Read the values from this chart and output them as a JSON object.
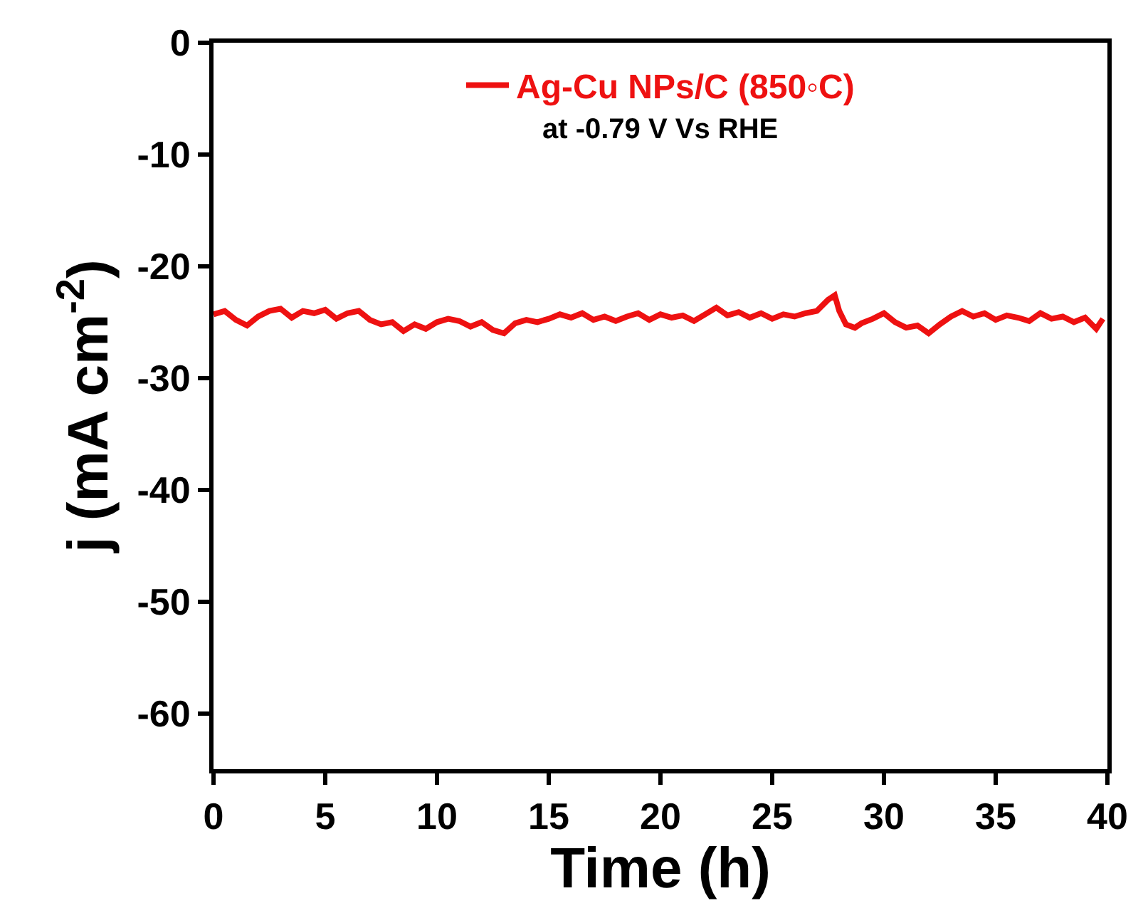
{
  "chart_data": {
    "type": "line",
    "xlabel": "Time (h)",
    "ylabel": "j (mA cm$^{-2}$)",
    "annotations": [
      "at -0.79 V Vs RHE"
    ],
    "xlim": [
      0,
      40
    ],
    "xticks": [
      0,
      5,
      10,
      15,
      20,
      25,
      30,
      35,
      40
    ],
    "ylim": [
      -65,
      0
    ],
    "yticks": [
      0,
      -10,
      -20,
      -30,
      -40,
      -50,
      -60
    ],
    "legend": "top",
    "marker": "none",
    "line_style": "solid",
    "x": [
      0,
      0.5,
      1,
      1.5,
      2,
      2.5,
      3,
      3.5,
      4,
      4.5,
      5,
      5.5,
      6,
      6.5,
      7,
      7.5,
      8,
      8.5,
      9,
      9.5,
      10,
      10.5,
      11,
      11.5,
      12,
      12.5,
      13,
      13.5,
      14,
      14.5,
      15,
      15.5,
      16,
      16.5,
      17,
      17.5,
      18,
      18.5,
      19,
      19.5,
      20,
      20.5,
      21,
      21.5,
      22,
      22.5,
      23,
      23.5,
      24,
      24.5,
      25,
      25.5,
      26,
      26.5,
      27,
      27.5,
      27.8,
      28,
      28.3,
      28.7,
      29,
      29.5,
      30,
      30.5,
      31,
      31.5,
      32,
      32.5,
      33,
      33.5,
      34,
      34.5,
      35,
      35.5,
      36,
      36.5,
      37,
      37.5,
      38,
      38.5,
      39,
      39.5,
      39.8
    ],
    "series": [
      {
        "name": "Ag-Cu NPs/C (850◦C)",
        "color": "#ee1111",
        "values": [
          -24.3,
          -24.0,
          -24.8,
          -25.3,
          -24.5,
          -24.0,
          -23.8,
          -24.6,
          -24.0,
          -24.2,
          -23.9,
          -24.7,
          -24.2,
          -24.0,
          -24.8,
          -25.2,
          -25.0,
          -25.8,
          -25.2,
          -25.6,
          -25.0,
          -24.7,
          -24.9,
          -25.4,
          -25.0,
          -25.7,
          -26.0,
          -25.1,
          -24.8,
          -25.0,
          -24.7,
          -24.3,
          -24.6,
          -24.2,
          -24.8,
          -24.5,
          -24.9,
          -24.5,
          -24.2,
          -24.8,
          -24.3,
          -24.6,
          -24.4,
          -24.9,
          -24.3,
          -23.7,
          -24.4,
          -24.1,
          -24.6,
          -24.2,
          -24.7,
          -24.3,
          -24.5,
          -24.2,
          -24.0,
          -23.0,
          -22.6,
          -24.0,
          -25.2,
          -25.5,
          -25.1,
          -24.7,
          -24.2,
          -25.0,
          -25.5,
          -25.3,
          -26.0,
          -25.2,
          -24.5,
          -24.0,
          -24.5,
          -24.2,
          -24.8,
          -24.4,
          -24.6,
          -24.9,
          -24.2,
          -24.7,
          -24.5,
          -25.0,
          -24.6,
          -25.6,
          -24.7
        ]
      }
    ]
  }
}
